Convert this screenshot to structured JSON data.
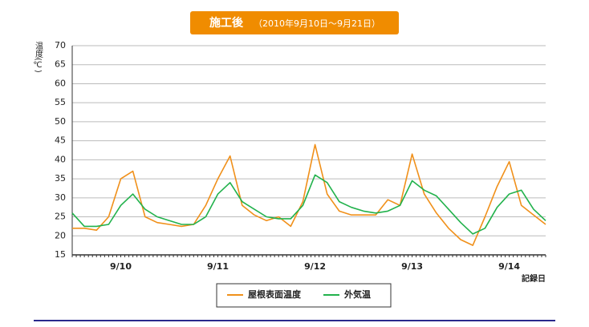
{
  "chart_data": {
    "type": "line",
    "title": "施工後",
    "subtitle": "（2010年9月10日〜9月21日）",
    "ylabel": "温度(℃)",
    "xlabel": "記録日",
    "categories": [
      null,
      null,
      null,
      null,
      "9/10",
      null,
      null,
      null,
      null,
      null,
      null,
      null,
      "9/11",
      null,
      null,
      null,
      null,
      null,
      null,
      null,
      "9/12",
      null,
      null,
      null,
      null,
      null,
      null,
      null,
      "9/13",
      null,
      null,
      null,
      null,
      null,
      null,
      null,
      "9/14",
      null,
      null,
      null
    ],
    "series": [
      {
        "name": "屋根表面温度",
        "color": "#f0901a",
        "values": [
          22,
          22,
          21.5,
          25,
          35,
          37,
          25,
          23.5,
          23,
          22.5,
          23,
          28,
          35,
          41,
          28,
          25.5,
          24,
          25,
          22.5,
          29,
          44,
          31,
          26.5,
          25.5,
          25.5,
          25.5,
          29.5,
          28,
          41.5,
          31,
          26,
          22,
          19,
          17.5,
          25,
          33,
          39.5,
          28,
          25.5,
          23
        ]
      },
      {
        "name": "外気温",
        "color": "#22b24c",
        "values": [
          26,
          22.5,
          22.5,
          23,
          28,
          31,
          27,
          25,
          24,
          23,
          23,
          25,
          31,
          34,
          29,
          27,
          25,
          24.5,
          24.5,
          28,
          36,
          34,
          29,
          27.5,
          26.5,
          26,
          26.5,
          28,
          34.5,
          32,
          30.5,
          27,
          23.5,
          20.5,
          22,
          27.5,
          31,
          32,
          27,
          24
        ]
      }
    ],
    "ylim": [
      15,
      70
    ],
    "yticks": [
      15,
      20,
      25,
      30,
      35,
      40,
      45,
      50,
      55,
      60,
      65,
      70
    ],
    "grid": true,
    "legend": "bottom"
  }
}
